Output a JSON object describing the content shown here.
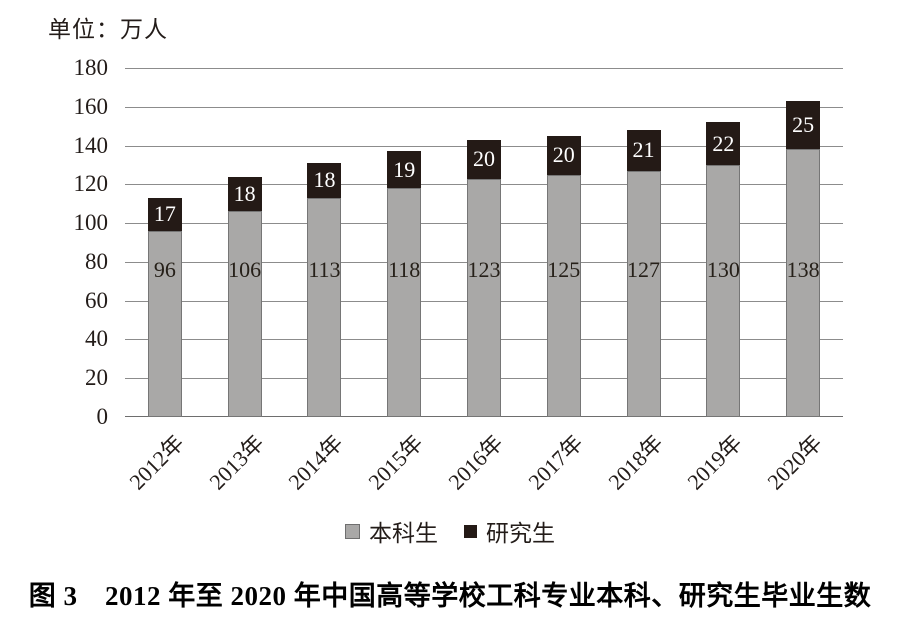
{
  "figure": {
    "caption": "图 3　2012 年至 2020 年中国高等学校工科专业本科、研究生毕业生数"
  },
  "chart_data": {
    "type": "bar",
    "stacked": true,
    "title": "",
    "unit_label": "单位：万人",
    "categories": [
      "2012年",
      "2013年",
      "2014年",
      "2015年",
      "2016年",
      "2017年",
      "2018年",
      "2019年",
      "2020年"
    ],
    "series": [
      {
        "name": "本科生",
        "color": "#a9a8a7",
        "border_color": "#767676",
        "label_color": "#262019",
        "values": [
          96,
          106,
          113,
          118,
          123,
          125,
          127,
          130,
          138
        ]
      },
      {
        "name": "研究生",
        "color": "#241a16",
        "label_color": "#ffffff",
        "values": [
          17,
          18,
          18,
          19,
          20,
          20,
          21,
          22,
          25
        ]
      }
    ],
    "ylim": [
      0,
      180
    ],
    "ytick_step": 20,
    "ytick_labels": [
      "0",
      "20",
      "40",
      "60",
      "80",
      "100",
      "120",
      "140",
      "160",
      "180"
    ],
    "grid": true,
    "gridline_color": "#8c8c8c",
    "axis_line_color": "#6e6e6e",
    "legend_position": "bottom",
    "xtick_rotation": 45
  }
}
